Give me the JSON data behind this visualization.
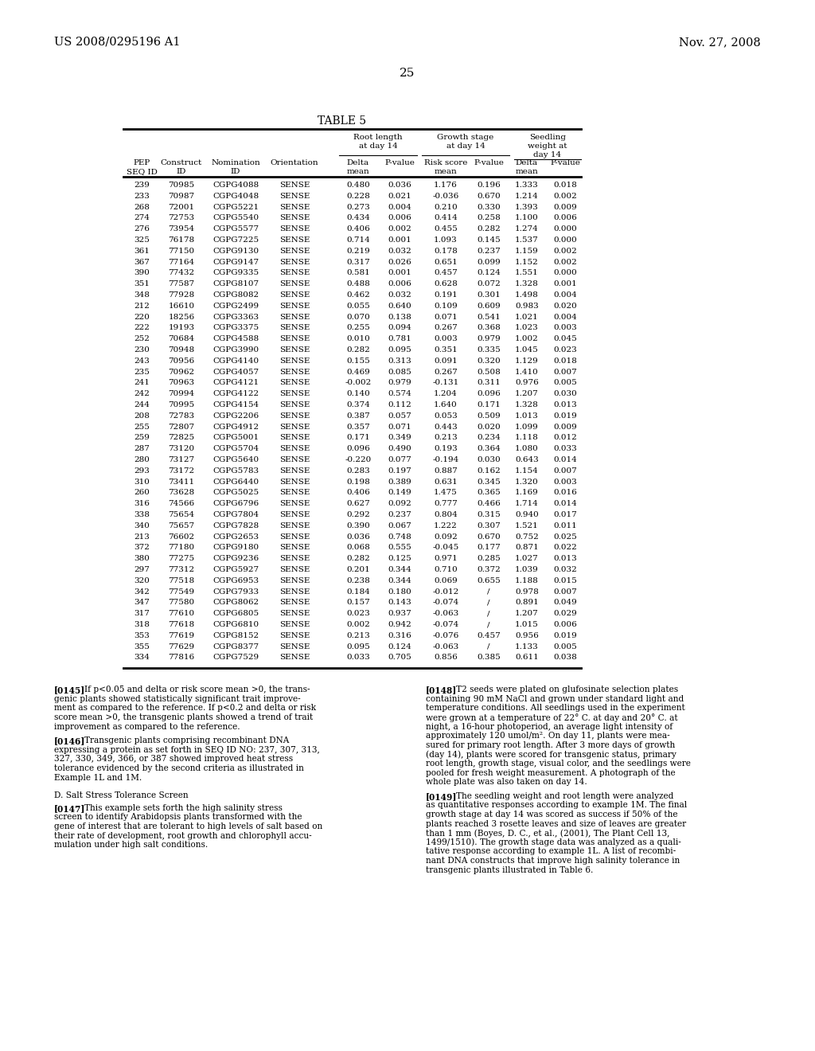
{
  "page_number": "25",
  "header_left": "US 2008/0295196 A1",
  "header_right": "Nov. 27, 2008",
  "table_title": "TABLE 5",
  "table_data": [
    [
      239,
      70985,
      "CGPG4088",
      "SENSE",
      "0.480",
      "0.036",
      "1.176",
      "0.196",
      "1.333",
      "0.018"
    ],
    [
      233,
      70987,
      "CGPG4048",
      "SENSE",
      "0.228",
      "0.021",
      "-0.036",
      "0.670",
      "1.214",
      "0.002"
    ],
    [
      268,
      72001,
      "CGPG5221",
      "SENSE",
      "0.273",
      "0.004",
      "0.210",
      "0.330",
      "1.393",
      "0.009"
    ],
    [
      274,
      72753,
      "CGPG5540",
      "SENSE",
      "0.434",
      "0.006",
      "0.414",
      "0.258",
      "1.100",
      "0.006"
    ],
    [
      276,
      73954,
      "CGPG5577",
      "SENSE",
      "0.406",
      "0.002",
      "0.455",
      "0.282",
      "1.274",
      "0.000"
    ],
    [
      325,
      76178,
      "CGPG7225",
      "SENSE",
      "0.714",
      "0.001",
      "1.093",
      "0.145",
      "1.537",
      "0.000"
    ],
    [
      361,
      77150,
      "CGPG9130",
      "SENSE",
      "0.219",
      "0.032",
      "0.178",
      "0.237",
      "1.159",
      "0.002"
    ],
    [
      367,
      77164,
      "CGPG9147",
      "SENSE",
      "0.317",
      "0.026",
      "0.651",
      "0.099",
      "1.152",
      "0.002"
    ],
    [
      390,
      77432,
      "CGPG9335",
      "SENSE",
      "0.581",
      "0.001",
      "0.457",
      "0.124",
      "1.551",
      "0.000"
    ],
    [
      351,
      77587,
      "CGPG8107",
      "SENSE",
      "0.488",
      "0.006",
      "0.628",
      "0.072",
      "1.328",
      "0.001"
    ],
    [
      348,
      77928,
      "CGPG8082",
      "SENSE",
      "0.462",
      "0.032",
      "0.191",
      "0.301",
      "1.498",
      "0.004"
    ],
    [
      212,
      16610,
      "CGPG2499",
      "SENSE",
      "0.055",
      "0.640",
      "0.109",
      "0.609",
      "0.983",
      "0.020"
    ],
    [
      220,
      18256,
      "CGPG3363",
      "SENSE",
      "0.070",
      "0.138",
      "0.071",
      "0.541",
      "1.021",
      "0.004"
    ],
    [
      222,
      19193,
      "CGPG3375",
      "SENSE",
      "0.255",
      "0.094",
      "0.267",
      "0.368",
      "1.023",
      "0.003"
    ],
    [
      252,
      70684,
      "CGPG4588",
      "SENSE",
      "0.010",
      "0.781",
      "0.003",
      "0.979",
      "1.002",
      "0.045"
    ],
    [
      230,
      70948,
      "CGPG3990",
      "SENSE",
      "0.282",
      "0.095",
      "0.351",
      "0.335",
      "1.045",
      "0.023"
    ],
    [
      243,
      70956,
      "CGPG4140",
      "SENSE",
      "0.155",
      "0.313",
      "0.091",
      "0.320",
      "1.129",
      "0.018"
    ],
    [
      235,
      70962,
      "CGPG4057",
      "SENSE",
      "0.469",
      "0.085",
      "0.267",
      "0.508",
      "1.410",
      "0.007"
    ],
    [
      241,
      70963,
      "CGPG4121",
      "SENSE",
      "-0.002",
      "0.979",
      "-0.131",
      "0.311",
      "0.976",
      "0.005"
    ],
    [
      242,
      70994,
      "CGPG4122",
      "SENSE",
      "0.140",
      "0.574",
      "1.204",
      "0.096",
      "1.207",
      "0.030"
    ],
    [
      244,
      70995,
      "CGPG4154",
      "SENSE",
      "0.374",
      "0.112",
      "1.640",
      "0.171",
      "1.328",
      "0.013"
    ],
    [
      208,
      72783,
      "CGPG2206",
      "SENSE",
      "0.387",
      "0.057",
      "0.053",
      "0.509",
      "1.013",
      "0.019"
    ],
    [
      255,
      72807,
      "CGPG4912",
      "SENSE",
      "0.357",
      "0.071",
      "0.443",
      "0.020",
      "1.099",
      "0.009"
    ],
    [
      259,
      72825,
      "CGPG5001",
      "SENSE",
      "0.171",
      "0.349",
      "0.213",
      "0.234",
      "1.118",
      "0.012"
    ],
    [
      287,
      73120,
      "CGPG5704",
      "SENSE",
      "0.096",
      "0.490",
      "0.193",
      "0.364",
      "1.080",
      "0.033"
    ],
    [
      280,
      73127,
      "CGPG5640",
      "SENSE",
      "-0.220",
      "0.077",
      "-0.194",
      "0.030",
      "0.643",
      "0.014"
    ],
    [
      293,
      73172,
      "CGPG5783",
      "SENSE",
      "0.283",
      "0.197",
      "0.887",
      "0.162",
      "1.154",
      "0.007"
    ],
    [
      310,
      73411,
      "CGPG6440",
      "SENSE",
      "0.198",
      "0.389",
      "0.631",
      "0.345",
      "1.320",
      "0.003"
    ],
    [
      260,
      73628,
      "CGPG5025",
      "SENSE",
      "0.406",
      "0.149",
      "1.475",
      "0.365",
      "1.169",
      "0.016"
    ],
    [
      316,
      74566,
      "CGPG6796",
      "SENSE",
      "0.627",
      "0.092",
      "0.777",
      "0.466",
      "1.714",
      "0.014"
    ],
    [
      338,
      75654,
      "CGPG7804",
      "SENSE",
      "0.292",
      "0.237",
      "0.804",
      "0.315",
      "0.940",
      "0.017"
    ],
    [
      340,
      75657,
      "CGPG7828",
      "SENSE",
      "0.390",
      "0.067",
      "1.222",
      "0.307",
      "1.521",
      "0.011"
    ],
    [
      213,
      76602,
      "CGPG2653",
      "SENSE",
      "0.036",
      "0.748",
      "0.092",
      "0.670",
      "0.752",
      "0.025"
    ],
    [
      372,
      77180,
      "CGPG9180",
      "SENSE",
      "0.068",
      "0.555",
      "-0.045",
      "0.177",
      "0.871",
      "0.022"
    ],
    [
      380,
      77275,
      "CGPG9236",
      "SENSE",
      "0.282",
      "0.125",
      "0.971",
      "0.285",
      "1.027",
      "0.013"
    ],
    [
      297,
      77312,
      "CGPG5927",
      "SENSE",
      "0.201",
      "0.344",
      "0.710",
      "0.372",
      "1.039",
      "0.032"
    ],
    [
      320,
      77518,
      "CGPG6953",
      "SENSE",
      "0.238",
      "0.344",
      "0.069",
      "0.655",
      "1.188",
      "0.015"
    ],
    [
      342,
      77549,
      "CGPG7933",
      "SENSE",
      "0.184",
      "0.180",
      "-0.012",
      "/",
      "0.978",
      "0.007"
    ],
    [
      347,
      77580,
      "CGPG8062",
      "SENSE",
      "0.157",
      "0.143",
      "-0.074",
      "/",
      "0.891",
      "0.049"
    ],
    [
      317,
      77610,
      "CGPG6805",
      "SENSE",
      "0.023",
      "0.937",
      "-0.063",
      "/",
      "1.207",
      "0.029"
    ],
    [
      318,
      77618,
      "CGPG6810",
      "SENSE",
      "0.002",
      "0.942",
      "-0.074",
      "/",
      "1.015",
      "0.006"
    ],
    [
      353,
      77619,
      "CGPG8152",
      "SENSE",
      "0.213",
      "0.316",
      "-0.076",
      "0.457",
      "0.956",
      "0.019"
    ],
    [
      355,
      77629,
      "CGPG8377",
      "SENSE",
      "0.095",
      "0.124",
      "-0.063",
      "/",
      "1.133",
      "0.005"
    ],
    [
      334,
      77816,
      "CGPG7529",
      "SENSE",
      "0.033",
      "0.705",
      "0.856",
      "0.385",
      "0.611",
      "0.038"
    ]
  ],
  "paragraphs_left": [
    {
      "tag": "[0145]",
      "text": "If p<0.05 and delta or risk score mean >0, the trans-\ngenic plants showed statistically significant trait improve-\nment as compared to the reference. If p<0.2 and delta or risk\nscore mean >0, the transgenic plants showed a trend of trait\nimprovement as compared to the reference."
    },
    {
      "tag": "[0146]",
      "text": "Transgenic plants comprising recombinant DNA\nexpressing a protein as set forth in SEQ ID NO: 237, 307, 313,\n327, 330, 349, 366, or 387 showed improved heat stress\ntolerance evidenced by the second criteria as illustrated in\nExample 1L and 1M."
    },
    {
      "tag": "D. Salt Stress Tolerance Screen",
      "text": ""
    },
    {
      "tag": "[0147]",
      "text": "This example sets forth the high salinity stress\nscreen to identify Arabidopsis plants transformed with the\ngene of interest that are tolerant to high levels of salt based on\ntheir rate of development, root growth and chlorophyll accu-\nmulation under high salt conditions."
    }
  ],
  "paragraphs_right": [
    {
      "tag": "[0148]",
      "text": "T2 seeds were plated on glufosinate selection plates\ncontaining 90 mM NaCl and grown under standard light and\ntemperature conditions. All seedlings used in the experiment\nwere grown at a temperature of 22° C. at day and 20° C. at\nnight, a 16-hour photoperiod, an average light intensity of\napproximately 120 umol/m². On day 11, plants were mea-\nsured for primary root length. After 3 more days of growth\n(day 14), plants were scored for transgenic status, primary\nroot length, growth stage, visual color, and the seedlings were\npooled for fresh weight measurement. A photograph of the\nwhole plate was also taken on day 14."
    },
    {
      "tag": "[0149]",
      "text": "The seedling weight and root length were analyzed\nas quantitative responses according to example 1M. The final\ngrowth stage at day 14 was scored as success if 50% of the\nplants reached 3 rosette leaves and size of leaves are greater\nthan 1 mm (Boyes, D. C., et al., (2001), The Plant Cell 13,\n1499/1510). The growth stage data was analyzed as a quali-\ntative response according to example 1L. A list of recombi-\nnant DNA constructs that improve high salinity tolerance in\ntransgenic plants illustrated in Table 6."
    }
  ]
}
